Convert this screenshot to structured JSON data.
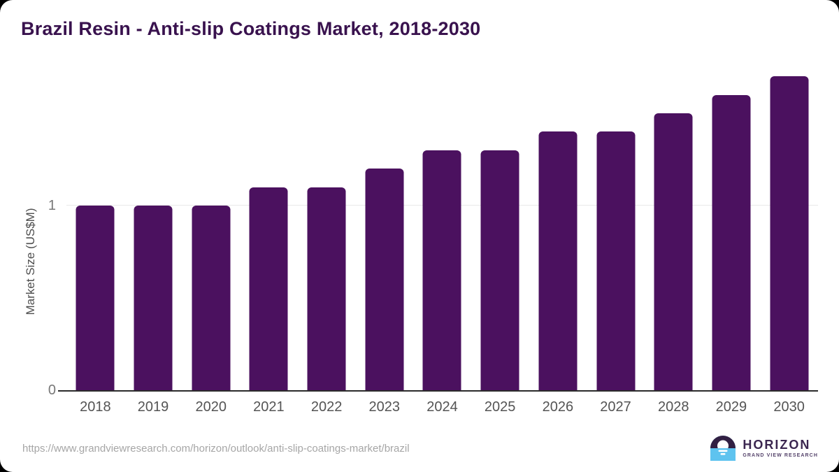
{
  "title": "Brazil Resin - Anti-slip Coatings Market, 2018-2030",
  "chart_data": {
    "type": "bar",
    "title": "Brazil Resin - Anti-slip Coatings Market, 2018-2030",
    "categories": [
      "2018",
      "2019",
      "2020",
      "2021",
      "2022",
      "2023",
      "2024",
      "2025",
      "2026",
      "2027",
      "2028",
      "2029",
      "2030"
    ],
    "values": [
      1.0,
      1.0,
      1.0,
      1.1,
      1.1,
      1.2,
      1.3,
      1.3,
      1.4,
      1.4,
      1.5,
      1.6,
      1.7
    ],
    "xlabel": "",
    "ylabel": "Market Size (US$M)",
    "ylim": [
      0,
      1.78
    ],
    "yticks": [
      "0",
      "1"
    ],
    "gridlines_at": [
      1
    ],
    "legend": "none",
    "bar_corner": "rounded-top"
  },
  "colors": {
    "background": "#ffffff",
    "page_behind": "#000000",
    "title": "#39124e",
    "bar": "#4b115f",
    "grid": "#e9e9e9",
    "axis": "#2b2b2b",
    "y_tick": "#777777",
    "x_tick": "#545454",
    "y_label": "#4f4f4f",
    "url": "#a6a6a6",
    "logo_purple": "#3b2650",
    "logo_tagline": "#55436b",
    "logo_icon_dark": "#322043",
    "logo_icon_blue": "#5ec3ef"
  },
  "footer": {
    "source_url": "https://www.grandviewresearch.com/horizon/outlook/anti-slip-coatings-market/brazil",
    "logo": {
      "brand": "HORIZON",
      "tagline": "GRAND VIEW RESEARCH"
    }
  }
}
